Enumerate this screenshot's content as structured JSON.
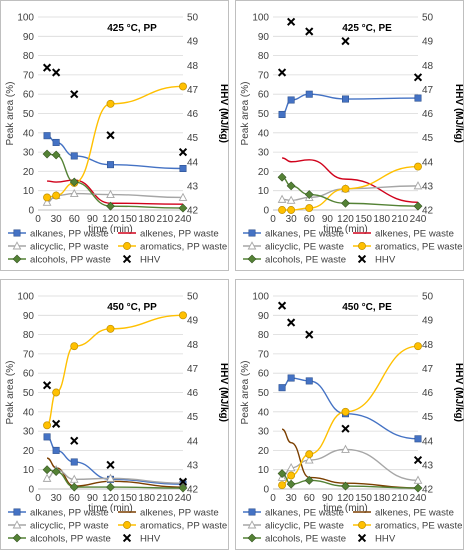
{
  "chart_data": [
    {
      "type": "line",
      "title": "425 °C, PP",
      "xlabel": "time (min)",
      "ylabel": "Peak area (%)",
      "y2label": "HHV (MJ/kg)",
      "xticks": [
        0,
        30,
        60,
        90,
        120,
        150,
        180,
        210,
        240
      ],
      "xlim": [
        0,
        240
      ],
      "ylim": [
        0,
        100
      ],
      "yticks": [
        0,
        10,
        20,
        30,
        40,
        50,
        60,
        70,
        80,
        90,
        100
      ],
      "y2lim": [
        42,
        50
      ],
      "y2ticks": [
        42,
        43,
        44,
        45,
        46,
        47,
        48,
        49,
        50
      ],
      "legend_position": "bottom",
      "series": [
        {
          "name": "alkanes, PP waste",
          "color": "#4472c4",
          "marker": "square",
          "x": [
            15,
            30,
            60,
            120,
            240
          ],
          "values": [
            38.5,
            35,
            28,
            23.5,
            21.5
          ]
        },
        {
          "name": "alkenes, PP waste",
          "color": "#d0021b",
          "marker": "none",
          "x": [
            15,
            30,
            60,
            120,
            240
          ],
          "values": [
            15,
            14.5,
            15.5,
            3.5,
            3
          ]
        },
        {
          "name": "alicyclic, PP waste",
          "color": "#a6a6a6",
          "marker": "triangle",
          "x": [
            15,
            30,
            60,
            120,
            240
          ],
          "values": [
            4,
            7.5,
            8.5,
            8,
            6.5
          ]
        },
        {
          "name": "aromatics, PP waste",
          "color": "#ffc000",
          "marker": "circle",
          "x": [
            15,
            30,
            60,
            120,
            240
          ],
          "values": [
            6.5,
            7.5,
            14,
            55,
            64
          ]
        },
        {
          "name": "alcohols, PP waste",
          "color": "#548235",
          "marker": "diamond",
          "x": [
            15,
            30,
            60,
            120,
            240
          ],
          "values": [
            29,
            28.5,
            14.5,
            2,
            1
          ]
        },
        {
          "name": "HHV",
          "color": "#000000",
          "marker": "x",
          "axis": "right",
          "x": [
            15,
            30,
            60,
            120,
            240
          ],
          "values": [
            47.9,
            47.7,
            46.8,
            45.1,
            44.4
          ]
        }
      ]
    },
    {
      "type": "line",
      "title": "425 °C, PE",
      "xlabel": "time (min)",
      "ylabel": "Peak area (%)",
      "y2label": "HHV (MJ/kg)",
      "xticks": [
        0,
        30,
        60,
        90,
        120,
        150,
        180,
        210,
        240
      ],
      "xlim": [
        0,
        240
      ],
      "ylim": [
        0,
        100
      ],
      "yticks": [
        0,
        10,
        20,
        30,
        40,
        50,
        60,
        70,
        80,
        90,
        100
      ],
      "y2lim": [
        42,
        50
      ],
      "y2ticks": [
        42,
        43,
        44,
        45,
        46,
        47,
        48,
        49,
        50
      ],
      "legend_position": "bottom",
      "series": [
        {
          "name": "alkanes, PE waste",
          "color": "#4472c4",
          "marker": "square",
          "x": [
            15,
            30,
            60,
            120,
            240
          ],
          "values": [
            49.5,
            57,
            60,
            57.5,
            58
          ]
        },
        {
          "name": "alkenes, PE waste",
          "color": "#d0021b",
          "marker": "none",
          "x": [
            15,
            30,
            60,
            120,
            240
          ],
          "values": [
            27,
            25,
            26,
            16,
            4
          ]
        },
        {
          "name": "alicyclic, PE waste",
          "color": "#a6a6a6",
          "marker": "triangle",
          "x": [
            15,
            30,
            60,
            120,
            240
          ],
          "values": [
            5.5,
            5,
            6.5,
            11,
            12.5
          ]
        },
        {
          "name": "aromatics, PE waste",
          "color": "#ffc000",
          "marker": "circle",
          "x": [
            15,
            30,
            60,
            120,
            240
          ],
          "values": [
            0,
            0,
            1,
            11,
            22.5
          ]
        },
        {
          "name": "alcohols, PE waste",
          "color": "#548235",
          "marker": "diamond",
          "x": [
            15,
            30,
            60,
            120,
            240
          ],
          "values": [
            17,
            12.5,
            8,
            3.5,
            2
          ]
        },
        {
          "name": "HHV",
          "color": "#000000",
          "marker": "x",
          "axis": "right",
          "x": [
            15,
            30,
            60,
            120,
            240
          ],
          "values": [
            47.7,
            49.8,
            49.4,
            49,
            47.5
          ]
        }
      ]
    },
    {
      "type": "line",
      "title": "450 °C, PP",
      "xlabel": "time (min)",
      "ylabel": "Peak area (%)",
      "y2label": "HHV (MJ/kg)",
      "xticks": [
        0,
        30,
        60,
        90,
        120,
        150,
        180,
        210,
        240
      ],
      "xlim": [
        0,
        240
      ],
      "ylim": [
        0,
        100
      ],
      "yticks": [
        0,
        10,
        20,
        30,
        40,
        50,
        60,
        70,
        80,
        90,
        100
      ],
      "y2lim": [
        42,
        50
      ],
      "y2ticks": [
        42,
        43,
        44,
        45,
        46,
        47,
        48,
        49,
        50
      ],
      "legend_position": "bottom",
      "series": [
        {
          "name": "alkanes, PP waste",
          "color": "#4472c4",
          "marker": "square",
          "x": [
            15,
            30,
            60,
            120,
            240
          ],
          "values": [
            27,
            20,
            14,
            5,
            2.5
          ]
        },
        {
          "name": "alkenes, PP waste",
          "color": "#7b3f00",
          "marker": "none",
          "x": [
            15,
            30,
            60,
            120,
            240
          ],
          "values": [
            16,
            11,
            1.5,
            4,
            1
          ]
        },
        {
          "name": "alicyclic, PP waste",
          "color": "#a6a6a6",
          "marker": "triangle",
          "x": [
            15,
            30,
            60,
            120,
            240
          ],
          "values": [
            5.5,
            10,
            5,
            5.5,
            3
          ]
        },
        {
          "name": "aromatics, PP waste",
          "color": "#ffc000",
          "marker": "circle",
          "x": [
            15,
            30,
            60,
            120,
            240
          ],
          "values": [
            33,
            50,
            74,
            83,
            90
          ]
        },
        {
          "name": "alcohols, PP waste",
          "color": "#548235",
          "marker": "diamond",
          "x": [
            15,
            30,
            60,
            120,
            240
          ],
          "values": [
            10,
            9,
            1,
            1,
            0.5
          ]
        },
        {
          "name": "HHV",
          "color": "#000000",
          "marker": "x",
          "axis": "right",
          "x": [
            15,
            30,
            60,
            120,
            240
          ],
          "values": [
            46.3,
            44.7,
            44,
            43,
            42.3
          ]
        }
      ]
    },
    {
      "type": "line",
      "title": "450 °C, PE",
      "xlabel": "time (min)",
      "ylabel": "Peak area (%)",
      "y2label": "HHV (MJ/kg)",
      "xticks": [
        0,
        30,
        60,
        90,
        120,
        150,
        180,
        210,
        240
      ],
      "xlim": [
        0,
        240
      ],
      "ylim": [
        0,
        100
      ],
      "yticks": [
        0,
        10,
        20,
        30,
        40,
        50,
        60,
        70,
        80,
        90,
        100
      ],
      "y2lim": [
        42,
        50
      ],
      "y2ticks": [
        42,
        43,
        44,
        45,
        46,
        47,
        48,
        49,
        50
      ],
      "legend_position": "bottom",
      "series": [
        {
          "name": "alkanes, PE waste",
          "color": "#4472c4",
          "marker": "square",
          "x": [
            15,
            30,
            60,
            120,
            240
          ],
          "values": [
            52.5,
            57.5,
            56,
            39,
            26
          ]
        },
        {
          "name": "alkenes, PE waste",
          "color": "#7b3f00",
          "marker": "none",
          "x": [
            15,
            30,
            60,
            120,
            240
          ],
          "values": [
            31,
            24,
            6,
            3,
            0.5
          ]
        },
        {
          "name": "alicyclic, PE waste",
          "color": "#a6a6a6",
          "marker": "triangle",
          "x": [
            15,
            30,
            60,
            120,
            240
          ],
          "values": [
            6,
            11,
            15,
            20.5,
            4.5
          ]
        },
        {
          "name": "aromatics, PE waste",
          "color": "#ffc000",
          "marker": "circle",
          "x": [
            15,
            30,
            60,
            120,
            240
          ],
          "values": [
            2,
            7,
            18,
            40,
            74
          ]
        },
        {
          "name": "alcohols, PE waste",
          "color": "#548235",
          "marker": "diamond",
          "x": [
            15,
            30,
            60,
            120,
            240
          ],
          "values": [
            8,
            2.5,
            4.5,
            1.5,
            0.5
          ]
        },
        {
          "name": "HHV",
          "color": "#000000",
          "marker": "x",
          "axis": "right",
          "x": [
            15,
            30,
            60,
            120,
            240
          ],
          "values": [
            49.6,
            48.9,
            48.4,
            44.5,
            43.2
          ]
        }
      ]
    }
  ]
}
